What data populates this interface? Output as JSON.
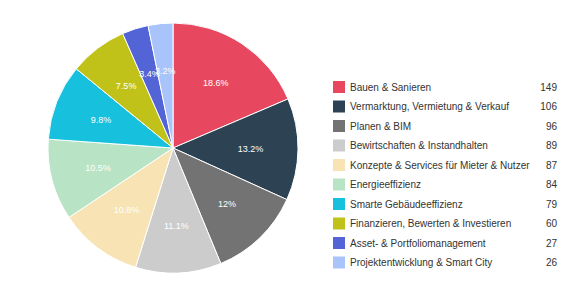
{
  "chart_data": {
    "type": "pie",
    "categories": [
      "Bauen & Sanieren",
      "Vermarktung, Vermietung & Verkauf",
      "Planen & BIM",
      "Bewirtschaften & Instandhalten",
      "Konzepte & Services für Mieter & Nutzer",
      "Energieeffizienz",
      "Smarte Gebäudeeffizienz",
      "Finanzieren, Bewerten & Investieren",
      "Asset- & Portfoliomanagement",
      "Projektentwicklung & Smart City"
    ],
    "values": [
      18.6,
      13.2,
      12,
      11.1,
      10.8,
      10.5,
      9.8,
      7.5,
      3.4,
      3.2
    ],
    "value_labels": [
      "18.6%",
      "13.2%",
      "12%",
      "11.1%",
      "10.8%",
      "10.5%",
      "9.8%",
      "7.5%",
      "3.4%",
      "3.2%"
    ],
    "counts": [
      149,
      106,
      96,
      89,
      87,
      84,
      79,
      60,
      27,
      26
    ],
    "colors": [
      "#e8485f",
      "#2d4353",
      "#737373",
      "#cccccc",
      "#f8e3b4",
      "#b8e3c4",
      "#17c0dc",
      "#c0c21a",
      "#5264d6",
      "#a8c4fa"
    ],
    "data_labels": true,
    "legend": "right"
  }
}
